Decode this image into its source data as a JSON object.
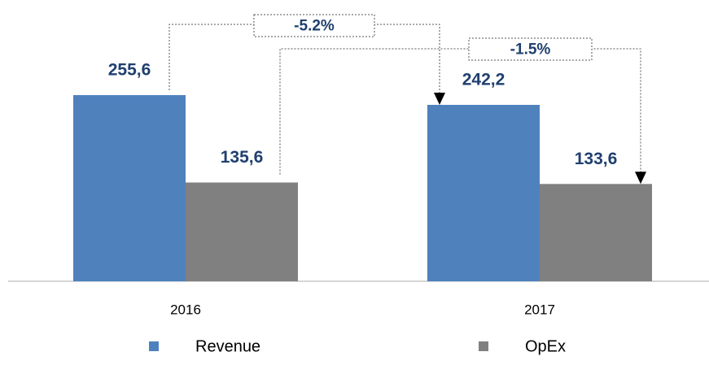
{
  "chart_data": {
    "type": "bar",
    "categories": [
      "2016",
      "2017"
    ],
    "series": [
      {
        "name": "Revenue",
        "color": "#4f81bd",
        "values": [
          255.6,
          242.2
        ],
        "value_labels": [
          "255,6",
          "242,2"
        ]
      },
      {
        "name": "OpEx",
        "color": "#808080",
        "values": [
          135.6,
          133.6
        ],
        "value_labels": [
          "135,6",
          "133,6"
        ]
      }
    ],
    "annotations": [
      "-5.2%",
      "-1.5%"
    ],
    "ylim": [
      0,
      375
    ],
    "label_color": "#1f3f6f"
  }
}
